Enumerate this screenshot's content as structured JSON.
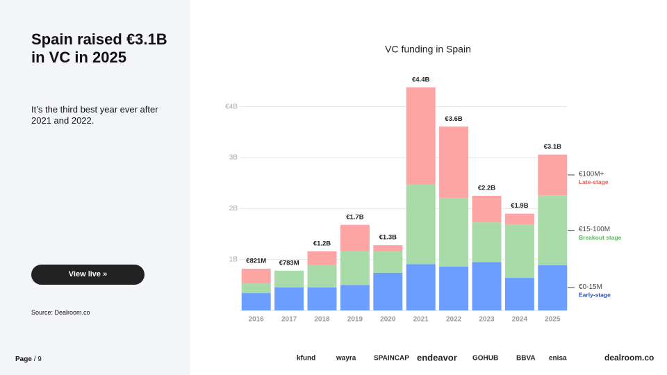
{
  "slide": {
    "title": "Spain raised €3.1B in VC in 2025",
    "subtitle": "It’s the third best year ever after 2021 and 2022.",
    "button": "View live »",
    "source": "Source:  Dealroom.co",
    "page": "Page",
    "page_total": "/ 9",
    "logos": [
      "kfund",
      "wayra",
      "SPAINCAP",
      "endeavor",
      "GOHUB",
      "BBVA",
      "enisa",
      "dealroom.co"
    ]
  },
  "chart_data": {
    "type": "stacked_bar",
    "title": "VC funding in Spain",
    "categories": [
      "2016",
      "2017",
      "2018",
      "2019",
      "2020",
      "2021",
      "2022",
      "2023",
      "2024",
      "2025"
    ],
    "series": [
      {
        "name": "€0-15M",
        "label": "Early-stage",
        "color": "#6b9eff",
        "label_color": "#2a4fbf",
        "values": [
          0.34,
          0.45,
          0.45,
          0.5,
          0.74,
          0.91,
          0.86,
          0.95,
          0.64,
          0.89
        ]
      },
      {
        "name": "€15-100M",
        "label": "Breakout stage",
        "color": "#a8dba8",
        "label_color": "#5cb85c",
        "values": [
          0.19,
          0.33,
          0.45,
          0.66,
          0.42,
          1.56,
          1.35,
          0.78,
          1.05,
          1.37
        ]
      },
      {
        "name": "€100M+",
        "label": "Late-stage",
        "color": "#fda4a4",
        "label_color": "#e05c5c",
        "values": [
          0.29,
          0,
          0.26,
          0.52,
          0.12,
          1.91,
          1.4,
          0.52,
          0.21,
          0.8
        ]
      }
    ],
    "totals": {
      "values": [
        0.821,
        0.783,
        1.2,
        1.7,
        1.3,
        4.4,
        3.6,
        2.2,
        1.9,
        3.1
      ],
      "value_labels": [
        "€821M",
        "€783M",
        "€1.2B",
        "€1.7B",
        "€1.3B",
        "€4.4B",
        "€3.6B",
        "€2.2B",
        "€1.9B",
        "€3.1B"
      ]
    },
    "ylim": [
      0,
      4.5
    ],
    "yticks": [
      {
        "value": 1,
        "label": "1B"
      },
      {
        "value": 2,
        "label": "2B"
      },
      {
        "value": 3,
        "label": "3B"
      },
      {
        "value": 4,
        "label": "€4B"
      }
    ],
    "grid": true,
    "legend": "right"
  }
}
